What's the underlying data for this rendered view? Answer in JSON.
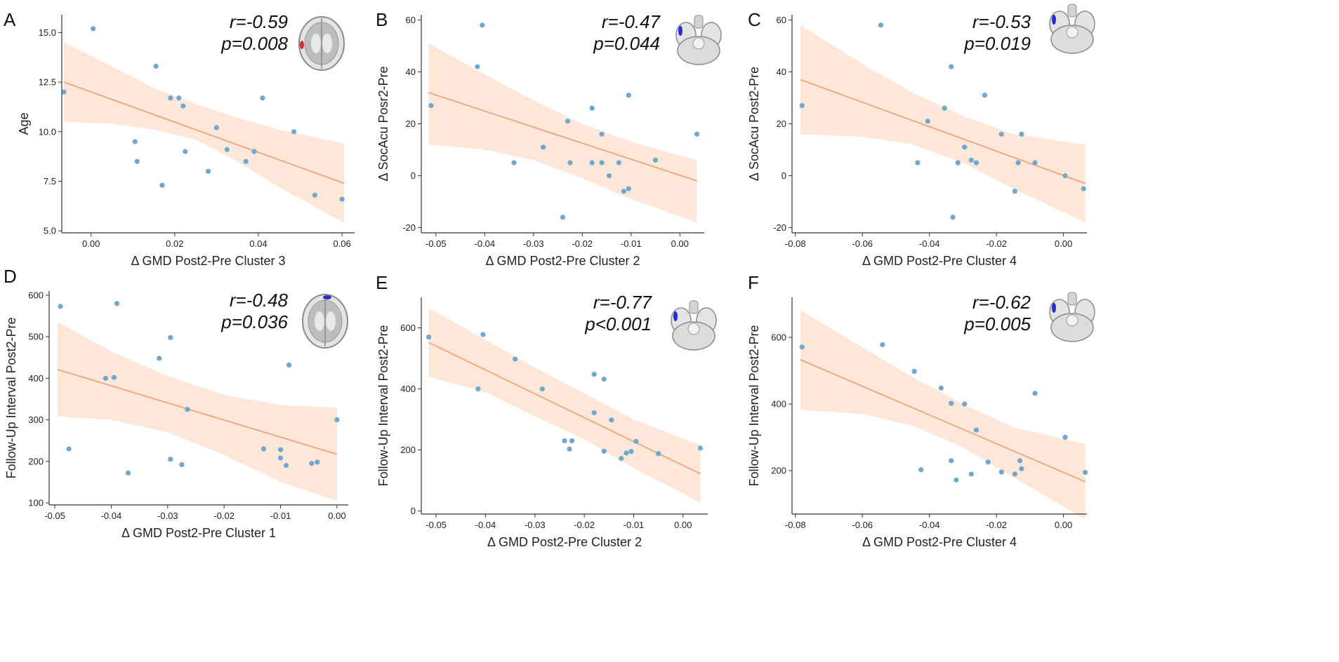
{
  "colors": {
    "band": "#fde7d8",
    "line": "#f0a37e",
    "point": "#6fa8cc",
    "axis": "#333333",
    "text": "#222222",
    "brain_highlight_blue": "#2b2bd0",
    "brain_highlight_red": "#d03030"
  },
  "chart_data": [
    {
      "panel": "A",
      "type": "scatter",
      "title": "",
      "xlabel": "Δ GMD Post2-Pre Cluster 3",
      "ylabel": "Age",
      "xlim": [
        -0.007,
        0.063
      ],
      "ylim": [
        4.9,
        15.9
      ],
      "xticks": [
        0.0,
        0.02,
        0.04,
        0.06
      ],
      "xticklabels": [
        "0.00",
        "0.02",
        "0.04",
        "0.06"
      ],
      "yticks": [
        5.0,
        7.5,
        10.0,
        12.5,
        15.0
      ],
      "yticklabels": [
        "5.0",
        "7.5",
        "10.0",
        "12.5",
        "15.0"
      ],
      "annotation": {
        "r": "r=-0.59",
        "p": "p=0.008"
      },
      "brain_view": "axial",
      "highlight": "red",
      "fit": {
        "x": [
          -0.0065,
          0.0605
        ],
        "y": [
          12.5,
          7.4
        ]
      },
      "band_upper": [
        [
          -0.0065,
          14.5
        ],
        [
          0.005,
          13.3
        ],
        [
          0.015,
          12.2
        ],
        [
          0.025,
          11.4
        ],
        [
          0.035,
          10.7
        ],
        [
          0.045,
          10.1
        ],
        [
          0.0605,
          9.4
        ]
      ],
      "band_lower": [
        [
          -0.0065,
          10.5
        ],
        [
          0.005,
          10.4
        ],
        [
          0.015,
          10.1
        ],
        [
          0.025,
          9.6
        ],
        [
          0.035,
          8.5
        ],
        [
          0.045,
          7.2
        ],
        [
          0.0605,
          5.4
        ]
      ],
      "points": [
        [
          -0.0065,
          12.0
        ],
        [
          0.0005,
          15.2
        ],
        [
          0.0105,
          9.5
        ],
        [
          0.011,
          8.5
        ],
        [
          0.0155,
          13.3
        ],
        [
          0.017,
          7.3
        ],
        [
          0.019,
          11.7
        ],
        [
          0.021,
          11.7
        ],
        [
          0.022,
          11.3
        ],
        [
          0.0225,
          9.0
        ],
        [
          0.028,
          8.0
        ],
        [
          0.03,
          10.2
        ],
        [
          0.0325,
          9.1
        ],
        [
          0.037,
          8.5
        ],
        [
          0.039,
          9.0
        ],
        [
          0.041,
          11.7
        ],
        [
          0.0485,
          10.0
        ],
        [
          0.0535,
          6.8
        ],
        [
          0.06,
          6.6
        ]
      ]
    },
    {
      "panel": "B",
      "type": "scatter",
      "title": "",
      "xlabel": "Δ GMD Post2-Pre Cluster 2",
      "ylabel": "Δ SocAcu Posr2-Pre",
      "xlim": [
        -0.053,
        0.005
      ],
      "ylim": [
        -22,
        62
      ],
      "xticks": [
        -0.05,
        -0.04,
        -0.03,
        -0.02,
        -0.01,
        0.0
      ],
      "xticklabels": [
        "-0.05",
        "-0.04",
        "-0.03",
        "-0.02",
        "-0.01",
        "0.00"
      ],
      "yticks": [
        -20,
        0,
        20,
        40,
        60
      ],
      "yticklabels": [
        "-20",
        "0",
        "20",
        "40",
        "60"
      ],
      "annotation": {
        "r": "r=-0.47",
        "p": "p=0.044"
      },
      "brain_view": "cerebellum",
      "highlight": "blue",
      "fit": {
        "x": [
          -0.0515,
          0.0035
        ],
        "y": [
          32,
          -2
        ]
      },
      "band_upper": [
        [
          -0.0515,
          51
        ],
        [
          -0.04,
          39
        ],
        [
          -0.03,
          29
        ],
        [
          -0.02,
          20
        ],
        [
          -0.01,
          13
        ],
        [
          0.0035,
          6
        ]
      ],
      "band_lower": [
        [
          -0.0515,
          12
        ],
        [
          -0.04,
          10
        ],
        [
          -0.03,
          6
        ],
        [
          -0.02,
          -1
        ],
        [
          -0.01,
          -9
        ],
        [
          0.0035,
          -18
        ]
      ],
      "points": [
        [
          -0.051,
          27
        ],
        [
          -0.0415,
          42
        ],
        [
          -0.0405,
          58
        ],
        [
          -0.034,
          5
        ],
        [
          -0.028,
          11
        ],
        [
          -0.024,
          -16
        ],
        [
          -0.023,
          21
        ],
        [
          -0.0225,
          5
        ],
        [
          -0.018,
          26
        ],
        [
          -0.018,
          5
        ],
        [
          -0.016,
          16
        ],
        [
          -0.016,
          5
        ],
        [
          -0.0145,
          0
        ],
        [
          -0.0125,
          5
        ],
        [
          -0.0115,
          -6
        ],
        [
          -0.0105,
          -5
        ],
        [
          -0.0105,
          31
        ],
        [
          -0.005,
          6
        ],
        [
          0.0035,
          16
        ]
      ]
    },
    {
      "panel": "C",
      "type": "scatter",
      "title": "",
      "xlabel": "Δ GMD Post2-Pre Cluster 4",
      "ylabel": "Δ SocAcu Post2-Pre",
      "xlim": [
        -0.081,
        0.007
      ],
      "ylim": [
        -22,
        62
      ],
      "xticks": [
        -0.08,
        -0.06,
        -0.04,
        -0.02,
        0.0
      ],
      "xticklabels": [
        "-0.08",
        "-0.06",
        "-0.04",
        "-0.02",
        "0.00"
      ],
      "yticks": [
        -20,
        0,
        20,
        40,
        60
      ],
      "yticklabels": [
        "-20",
        "0",
        "20",
        "40",
        "60"
      ],
      "annotation": {
        "r": "r=-0.53",
        "p": "p=0.019"
      },
      "brain_view": "cerebellum",
      "highlight": "blue",
      "fit": {
        "x": [
          -0.0785,
          0.0065
        ],
        "y": [
          37,
          -3
        ]
      },
      "band_upper": [
        [
          -0.0785,
          58
        ],
        [
          -0.06,
          43
        ],
        [
          -0.045,
          32
        ],
        [
          -0.03,
          23
        ],
        [
          -0.015,
          16
        ],
        [
          0.0065,
          12
        ]
      ],
      "band_lower": [
        [
          -0.0785,
          16
        ],
        [
          -0.06,
          15
        ],
        [
          -0.045,
          12
        ],
        [
          -0.03,
          5
        ],
        [
          -0.015,
          -5
        ],
        [
          0.0065,
          -18
        ]
      ],
      "points": [
        [
          -0.078,
          27
        ],
        [
          -0.0545,
          58
        ],
        [
          -0.0435,
          5
        ],
        [
          -0.0405,
          21
        ],
        [
          -0.0355,
          26
        ],
        [
          -0.0335,
          42
        ],
        [
          -0.033,
          -16
        ],
        [
          -0.0315,
          5
        ],
        [
          -0.0295,
          11
        ],
        [
          -0.0275,
          6
        ],
        [
          -0.026,
          5
        ],
        [
          -0.0235,
          31
        ],
        [
          -0.0185,
          16
        ],
        [
          -0.0145,
          -6
        ],
        [
          -0.0135,
          5
        ],
        [
          -0.0125,
          16
        ],
        [
          -0.0085,
          5
        ],
        [
          0.0005,
          0
        ],
        [
          0.006,
          -5
        ]
      ]
    },
    {
      "panel": "D",
      "type": "scatter",
      "title": "",
      "xlabel": "Δ GMD Post2-Pre Cluster 1",
      "ylabel": "Follow-Up Interval Post2-Pre",
      "xlim": [
        -0.051,
        0.002
      ],
      "ylim": [
        95,
        610
      ],
      "xticks": [
        -0.05,
        -0.04,
        -0.03,
        -0.02,
        -0.01,
        0.0
      ],
      "xticklabels": [
        "-0.05",
        "-0.04",
        "-0.03",
        "-0.02",
        "-0.01",
        "0.00"
      ],
      "yticks": [
        100,
        200,
        300,
        400,
        500,
        600
      ],
      "yticklabels": [
        "100",
        "200",
        "300",
        "400",
        "500",
        "600"
      ],
      "annotation": {
        "r": "r=-0.48",
        "p": "p=0.036"
      },
      "brain_view": "axial",
      "highlight": "blue",
      "fit": {
        "x": [
          -0.0495,
          0.0
        ],
        "y": [
          421,
          217
        ]
      },
      "band_upper": [
        [
          -0.0495,
          535
        ],
        [
          -0.04,
          465
        ],
        [
          -0.03,
          405
        ],
        [
          -0.02,
          360
        ],
        [
          -0.01,
          335
        ],
        [
          0.0,
          330
        ]
      ],
      "band_lower": [
        [
          -0.0495,
          308
        ],
        [
          -0.04,
          300
        ],
        [
          -0.03,
          270
        ],
        [
          -0.02,
          215
        ],
        [
          -0.01,
          150
        ],
        [
          0.0,
          105
        ]
      ],
      "points": [
        [
          -0.049,
          573
        ],
        [
          -0.0475,
          230
        ],
        [
          -0.041,
          400
        ],
        [
          -0.0395,
          402
        ],
        [
          -0.039,
          580
        ],
        [
          -0.037,
          172
        ],
        [
          -0.0315,
          448
        ],
        [
          -0.0295,
          498
        ],
        [
          -0.0295,
          205
        ],
        [
          -0.0275,
          192
        ],
        [
          -0.0265,
          325
        ],
        [
          -0.013,
          230
        ],
        [
          -0.01,
          228
        ],
        [
          -0.01,
          208
        ],
        [
          -0.009,
          190
        ],
        [
          -0.0085,
          432
        ],
        [
          -0.0045,
          195
        ],
        [
          -0.0035,
          198
        ],
        [
          0.0,
          300
        ]
      ]
    },
    {
      "panel": "E",
      "type": "scatter",
      "title": "",
      "xlabel": "Δ GMD Post2-Pre Cluster 2",
      "ylabel": "Follow-Up Interval Post2-Pre",
      "xlim": [
        -0.053,
        0.005
      ],
      "ylim": [
        -10,
        700
      ],
      "xticks": [
        -0.05,
        -0.04,
        -0.03,
        -0.02,
        -0.01,
        0.0
      ],
      "xticklabels": [
        "-0.05",
        "-0.04",
        "-0.03",
        "-0.02",
        "-0.01",
        "0.00"
      ],
      "yticks": [
        0,
        200,
        400,
        600
      ],
      "yticklabels": [
        "0",
        "200",
        "400",
        "600"
      ],
      "annotation": {
        "r": "r=-0.77",
        "p": "p<0.001"
      },
      "brain_view": "cerebellum",
      "highlight": "blue",
      "fit": {
        "x": [
          -0.0515,
          0.0035
        ],
        "y": [
          552,
          122
        ]
      },
      "band_upper": [
        [
          -0.0515,
          665
        ],
        [
          -0.04,
          560
        ],
        [
          -0.03,
          470
        ],
        [
          -0.02,
          385
        ],
        [
          -0.01,
          300
        ],
        [
          0.0035,
          215
        ]
      ],
      "band_lower": [
        [
          -0.0515,
          440
        ],
        [
          -0.04,
          390
        ],
        [
          -0.03,
          310
        ],
        [
          -0.02,
          235
        ],
        [
          -0.01,
          140
        ],
        [
          0.0035,
          28
        ]
      ],
      "points": [
        [
          -0.0515,
          570
        ],
        [
          -0.0415,
          400
        ],
        [
          -0.0405,
          578
        ],
        [
          -0.034,
          498
        ],
        [
          -0.0285,
          400
        ],
        [
          -0.024,
          230
        ],
        [
          -0.023,
          203
        ],
        [
          -0.0225,
          230
        ],
        [
          -0.018,
          448
        ],
        [
          -0.018,
          322
        ],
        [
          -0.016,
          432
        ],
        [
          -0.016,
          196
        ],
        [
          -0.0145,
          298
        ],
        [
          -0.0125,
          172
        ],
        [
          -0.0115,
          190
        ],
        [
          -0.0105,
          195
        ],
        [
          -0.0095,
          228
        ],
        [
          -0.005,
          188
        ],
        [
          0.0035,
          206
        ]
      ]
    },
    {
      "panel": "F",
      "type": "scatter",
      "title": "",
      "xlabel": "Δ GMD Post2-Pre Cluster 4",
      "ylabel": "Follow-Up Interval Post2-Pre",
      "xlim": [
        -0.081,
        0.007
      ],
      "ylim": [
        70,
        720
      ],
      "xticks": [
        -0.08,
        -0.06,
        -0.04,
        -0.02,
        0.0
      ],
      "xticklabels": [
        "-0.08",
        "-0.06",
        "-0.04",
        "-0.02",
        "0.00"
      ],
      "yticks": [
        200,
        400,
        600
      ],
      "yticklabels": [
        "200",
        "400",
        "600"
      ],
      "annotation": {
        "r": "r=-0.62",
        "p": "p=0.005"
      },
      "brain_view": "cerebellum",
      "highlight": "blue",
      "fit": {
        "x": [
          -0.0785,
          0.0065
        ],
        "y": [
          533,
          167
        ]
      },
      "band_upper": [
        [
          -0.0785,
          682
        ],
        [
          -0.06,
          570
        ],
        [
          -0.045,
          480
        ],
        [
          -0.03,
          400
        ],
        [
          -0.015,
          330
        ],
        [
          0.0065,
          280
        ]
      ],
      "band_lower": [
        [
          -0.0785,
          383
        ],
        [
          -0.06,
          370
        ],
        [
          -0.045,
          335
        ],
        [
          -0.03,
          270
        ],
        [
          -0.015,
          180
        ],
        [
          0.0065,
          55
        ]
      ],
      "points": [
        [
          -0.078,
          571
        ],
        [
          -0.054,
          578
        ],
        [
          -0.0445,
          498
        ],
        [
          -0.0425,
          203
        ],
        [
          -0.0365,
          448
        ],
        [
          -0.0335,
          402
        ],
        [
          -0.0335,
          230
        ],
        [
          -0.032,
          172
        ],
        [
          -0.0295,
          400
        ],
        [
          -0.0275,
          190
        ],
        [
          -0.026,
          322
        ],
        [
          -0.0225,
          226
        ],
        [
          -0.0185,
          196
        ],
        [
          -0.0145,
          190
        ],
        [
          -0.0125,
          206
        ],
        [
          -0.013,
          230
        ],
        [
          -0.0085,
          432
        ],
        [
          0.0005,
          300
        ],
        [
          0.0065,
          195
        ]
      ]
    }
  ]
}
